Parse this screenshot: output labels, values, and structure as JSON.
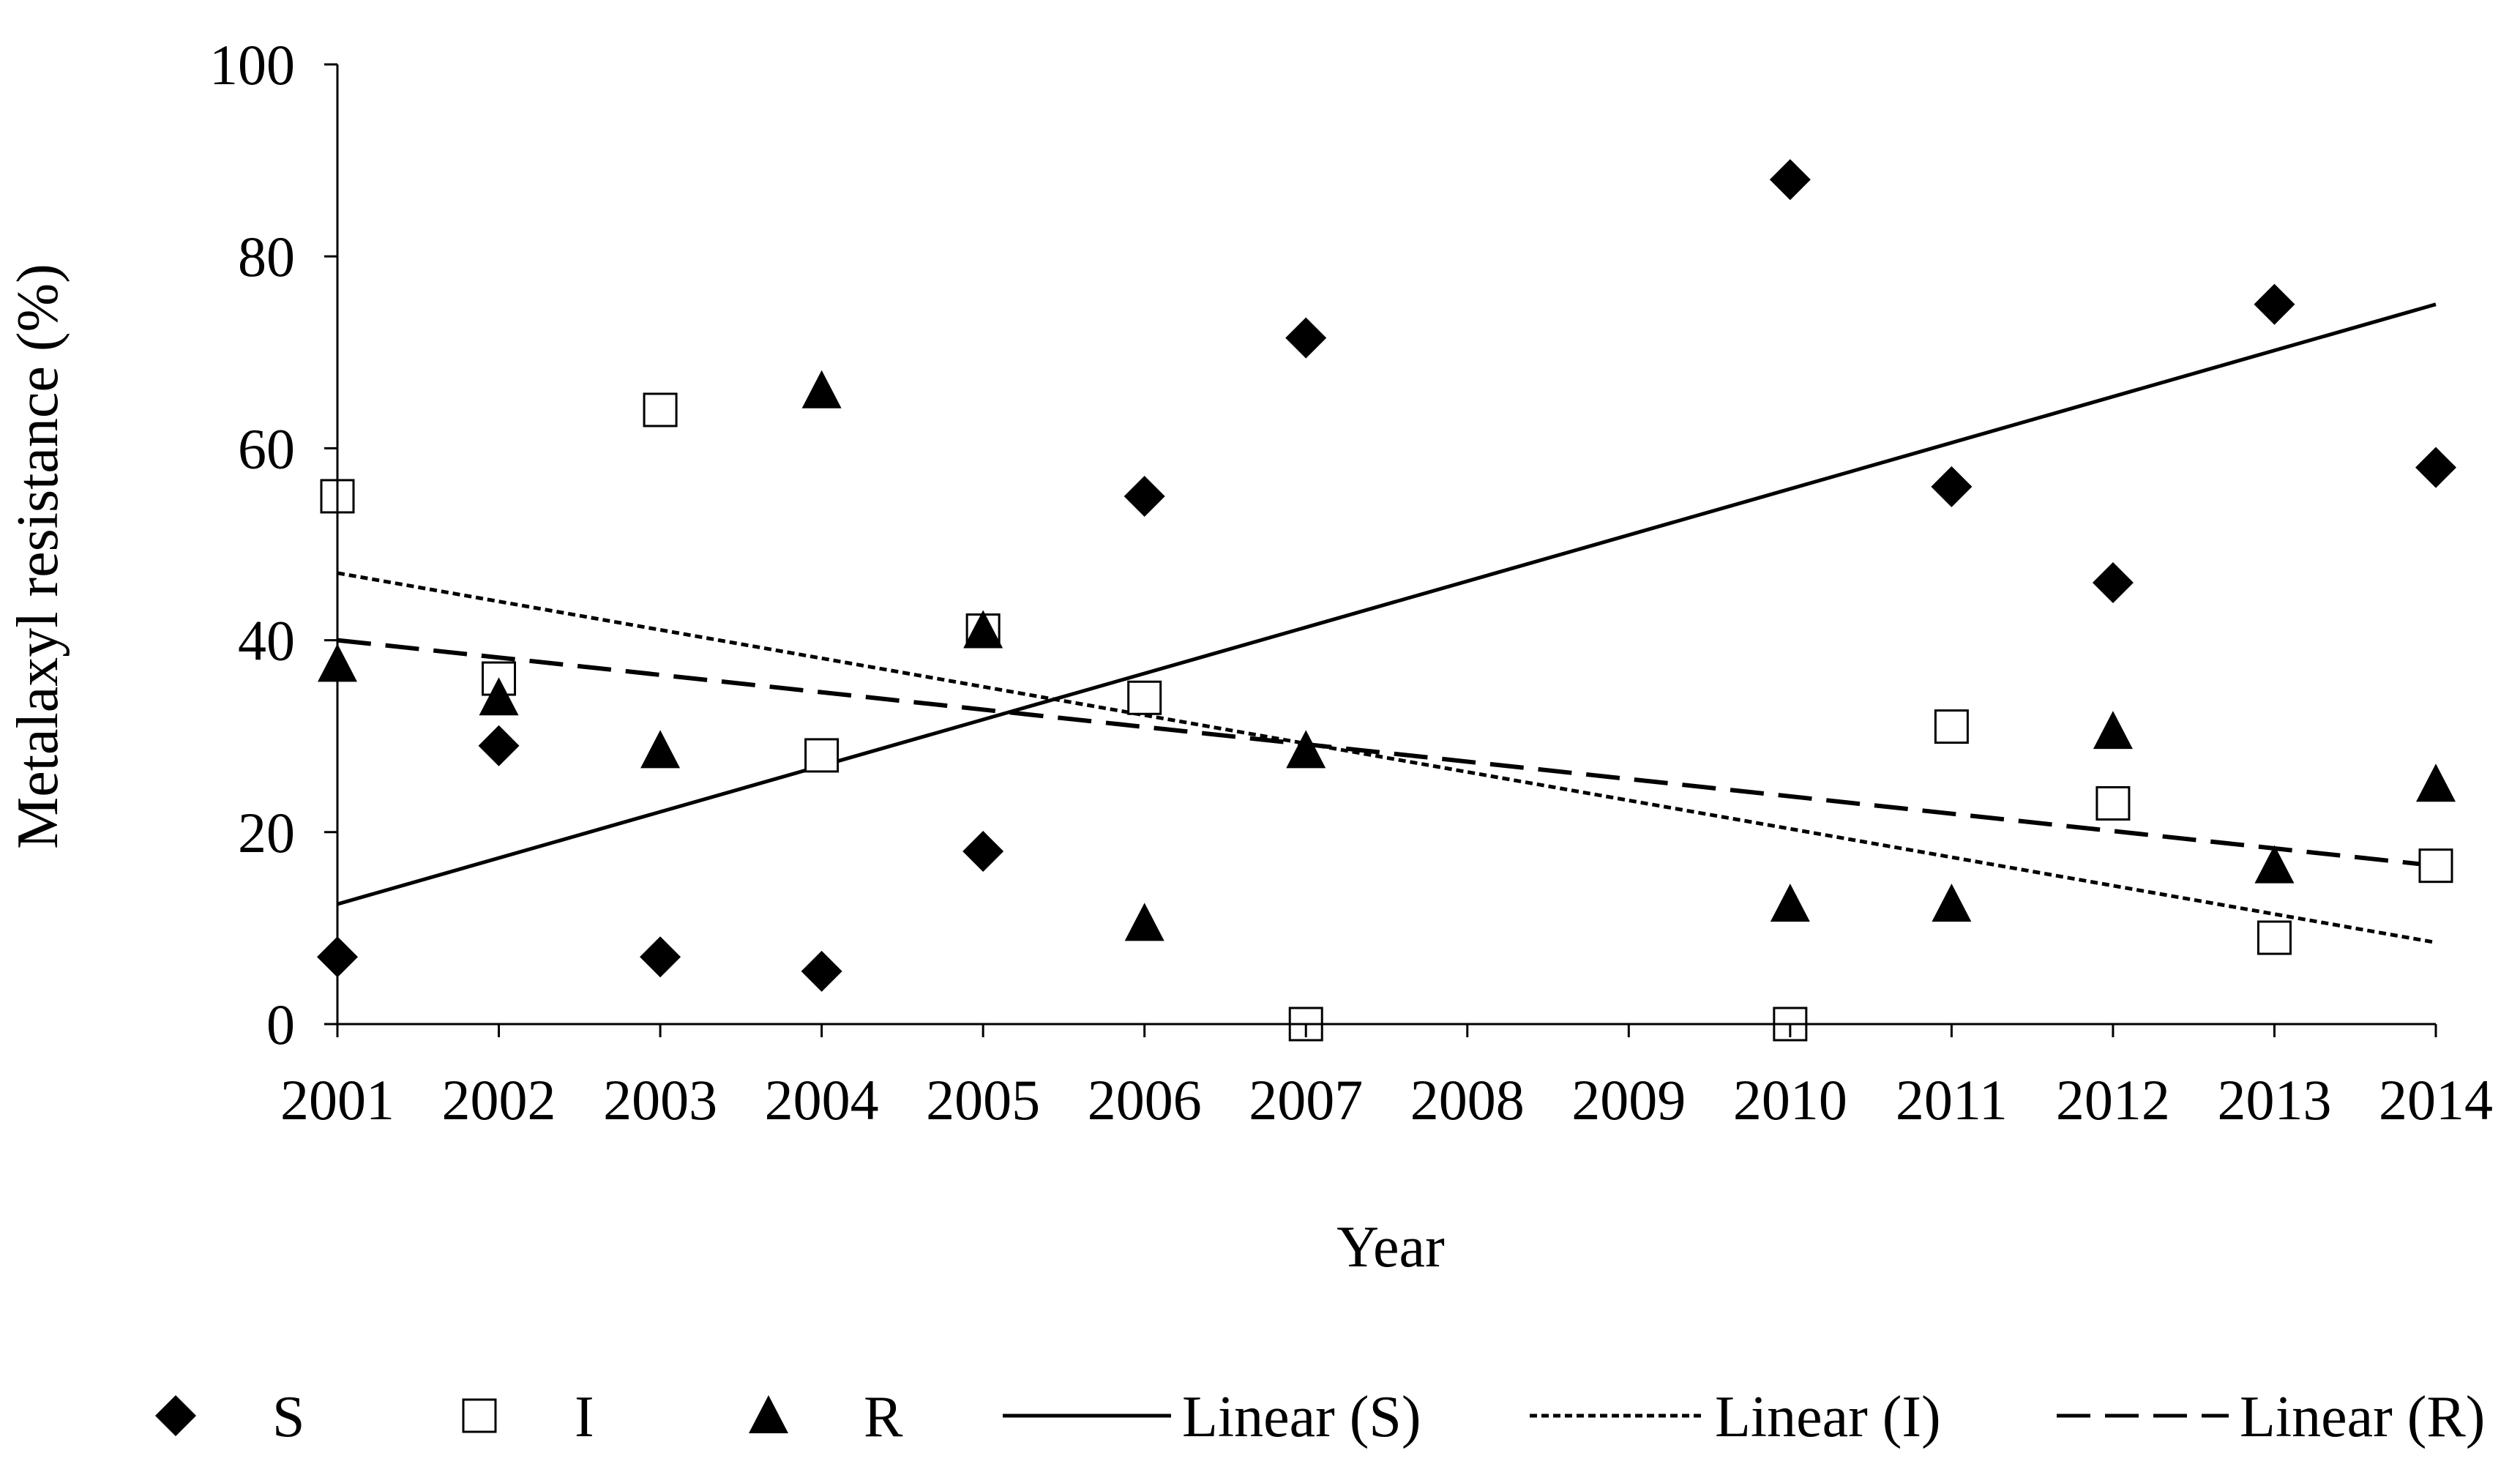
{
  "chart_data": {
    "type": "scatter",
    "xlabel": "Year",
    "ylabel": "Metalaxyl resistance (%)",
    "ylim": [
      0,
      100
    ],
    "yticks": [
      0,
      20,
      40,
      60,
      80,
      100
    ],
    "xticks": [
      "2001",
      "2002",
      "2003",
      "2004",
      "2005",
      "2006",
      "2007",
      "2008",
      "2009",
      "2010",
      "2011",
      "2012",
      "2013",
      "2014"
    ],
    "xlim": [
      2001,
      2014
    ],
    "grid": false,
    "legend_position": "bottom",
    "series": [
      {
        "name": "S",
        "marker": "diamond",
        "color": "#000000",
        "points": [
          {
            "x": 2001,
            "y": 7
          },
          {
            "x": 2002,
            "y": 29
          },
          {
            "x": 2003,
            "y": 7
          },
          {
            "x": 2004,
            "y": 5.5
          },
          {
            "x": 2005,
            "y": 18
          },
          {
            "x": 2006,
            "y": 55
          },
          {
            "x": 2007,
            "y": 71.5
          },
          {
            "x": 2010,
            "y": 88
          },
          {
            "x": 2011,
            "y": 56
          },
          {
            "x": 2012,
            "y": 46
          },
          {
            "x": 2013,
            "y": 75
          },
          {
            "x": 2014,
            "y": 58
          }
        ]
      },
      {
        "name": "I",
        "marker": "open-square",
        "color": "#000000",
        "points": [
          {
            "x": 2001,
            "y": 55
          },
          {
            "x": 2002,
            "y": 36
          },
          {
            "x": 2003,
            "y": 64
          },
          {
            "x": 2004,
            "y": 28
          },
          {
            "x": 2005,
            "y": 41
          },
          {
            "x": 2006,
            "y": 34
          },
          {
            "x": 2007,
            "y": 0
          },
          {
            "x": 2010,
            "y": 0
          },
          {
            "x": 2011,
            "y": 31
          },
          {
            "x": 2012,
            "y": 23
          },
          {
            "x": 2013,
            "y": 9
          },
          {
            "x": 2014,
            "y": 16.5
          }
        ]
      },
      {
        "name": "R",
        "marker": "triangle",
        "color": "#000000",
        "points": [
          {
            "x": 2001,
            "y": 37.5
          },
          {
            "x": 2002,
            "y": 34
          },
          {
            "x": 2003,
            "y": 28.5
          },
          {
            "x": 2004,
            "y": 66
          },
          {
            "x": 2005,
            "y": 41
          },
          {
            "x": 2006,
            "y": 10.5
          },
          {
            "x": 2007,
            "y": 28.5
          },
          {
            "x": 2010,
            "y": 12.5
          },
          {
            "x": 2011,
            "y": 12.5
          },
          {
            "x": 2012,
            "y": 30.5
          },
          {
            "x": 2013,
            "y": 16.5
          },
          {
            "x": 2014,
            "y": 25
          }
        ]
      }
    ],
    "trendlines": [
      {
        "name": "Linear (S)",
        "style": "solid",
        "x": [
          2001,
          2014
        ],
        "y": [
          12.5,
          75
        ]
      },
      {
        "name": "Linear (I)",
        "style": "dotted",
        "x": [
          2001,
          2014
        ],
        "y": [
          47,
          8.5
        ]
      },
      {
        "name": "Linear (R)",
        "style": "dashed",
        "x": [
          2001,
          2014
        ],
        "y": [
          40,
          16.5
        ]
      }
    ]
  }
}
